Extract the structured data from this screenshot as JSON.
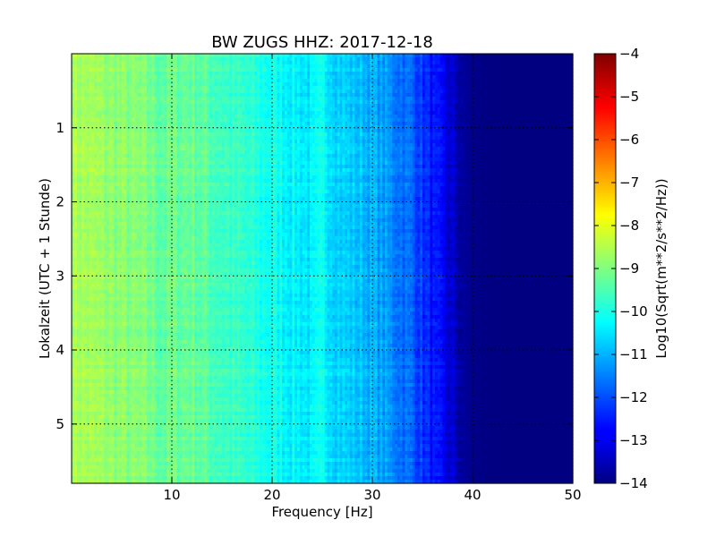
{
  "chart_data": {
    "type": "heatmap",
    "title": "BW ZUGS HHZ: 2017-12-18",
    "xlabel": "Frequency [Hz]",
    "ylabel": "Lokalzeit (UTC + 1 Stunde)",
    "xlim": [
      0,
      50
    ],
    "ylim": [
      5.8,
      0
    ],
    "xticks": [
      10,
      20,
      30,
      40,
      50
    ],
    "yticks": [
      1,
      2,
      3,
      4,
      5
    ],
    "grid": true,
    "colormap": "jet",
    "colorbar": {
      "label": "Log10(Sqrt(m**2/s**2/Hz))",
      "range": [
        -14,
        -4
      ],
      "ticks": [
        -4,
        -5,
        -6,
        -7,
        -8,
        -9,
        -10,
        -11,
        -12,
        -13,
        -14
      ]
    },
    "profile": {
      "freq_hz": [
        0,
        2,
        5,
        8,
        9,
        10,
        12,
        15,
        18,
        20,
        22,
        24,
        25,
        27,
        30,
        32,
        34,
        35,
        36,
        37,
        38,
        39,
        40,
        42,
        45,
        50
      ],
      "value": [
        -8.5,
        -8.7,
        -8.9,
        -9.1,
        -9.3,
        -9.2,
        -9.2,
        -9.6,
        -9.9,
        -10.1,
        -10.3,
        -10.5,
        -10.2,
        -10.7,
        -11.0,
        -11.4,
        -11.8,
        -12.2,
        -12.6,
        -12.9,
        -13.3,
        -13.7,
        -13.9,
        -14.0,
        -14.0,
        -14.0
      ]
    }
  }
}
